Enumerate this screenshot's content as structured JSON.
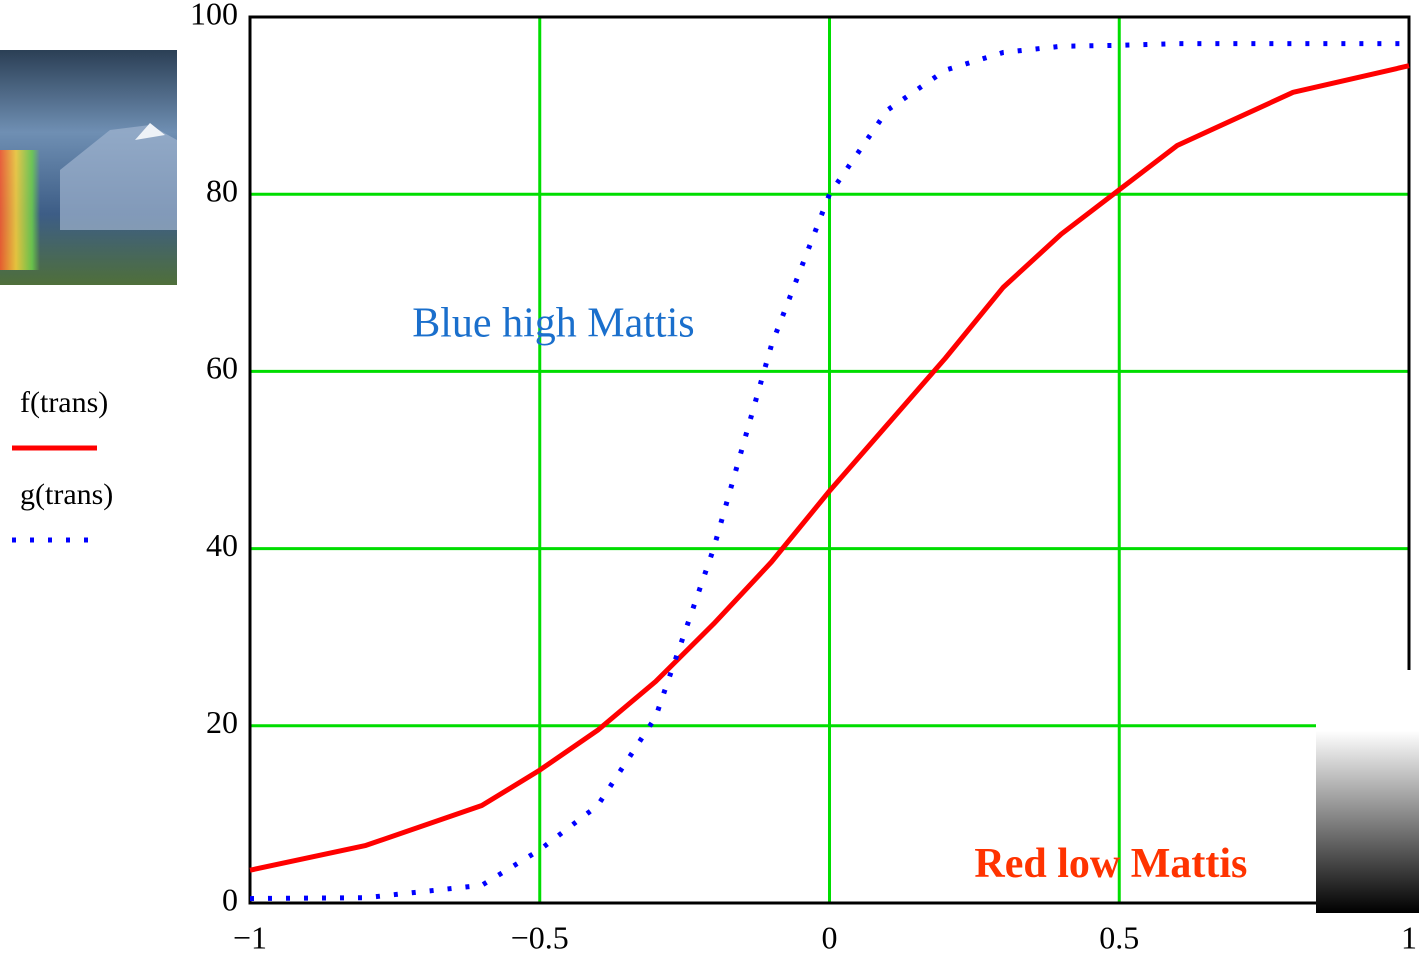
{
  "chart_data": {
    "type": "line",
    "x": [
      -1,
      -0.8,
      -0.6,
      -0.5,
      -0.4,
      -0.3,
      -0.2,
      -0.1,
      0,
      0.1,
      0.2,
      0.3,
      0.4,
      0.5,
      0.6,
      0.8,
      1
    ],
    "series": [
      {
        "name": "f(trans)",
        "color": "#ff0000",
        "style": "solid",
        "values": [
          3.7,
          6.5,
          11,
          15,
          19.5,
          25,
          31.5,
          38.5,
          46.5,
          54,
          61.5,
          69.5,
          75.5,
          80.5,
          85.5,
          91.5,
          94.5
        ]
      },
      {
        "name": "g(trans)",
        "color": "#0000ff",
        "style": "dotted",
        "values": [
          0.5,
          0.6,
          2,
          6,
          11,
          21,
          40,
          63,
          80,
          89.5,
          94,
          96,
          96.7,
          96.8,
          97,
          97,
          97
        ]
      }
    ],
    "xlim": [
      -1,
      1
    ],
    "xticks": [
      {
        "value": -1,
        "label": "−1"
      },
      {
        "value": -0.5,
        "label": "−0.5"
      },
      0,
      0.5,
      1
    ],
    "ylim": [
      0,
      100
    ],
    "yticks": [
      0,
      20,
      40,
      60,
      80,
      100
    ],
    "grid": true,
    "grid_color": "#00dd00",
    "annotations": [
      {
        "text": "Blue high Mattis",
        "x": -0.72,
        "y": 65,
        "color": "#1a6fcc",
        "bold": false
      },
      {
        "text": "Red low Mattis",
        "x": 0.25,
        "y": 4,
        "color": "#ff3300",
        "bold": true
      }
    ]
  }
}
